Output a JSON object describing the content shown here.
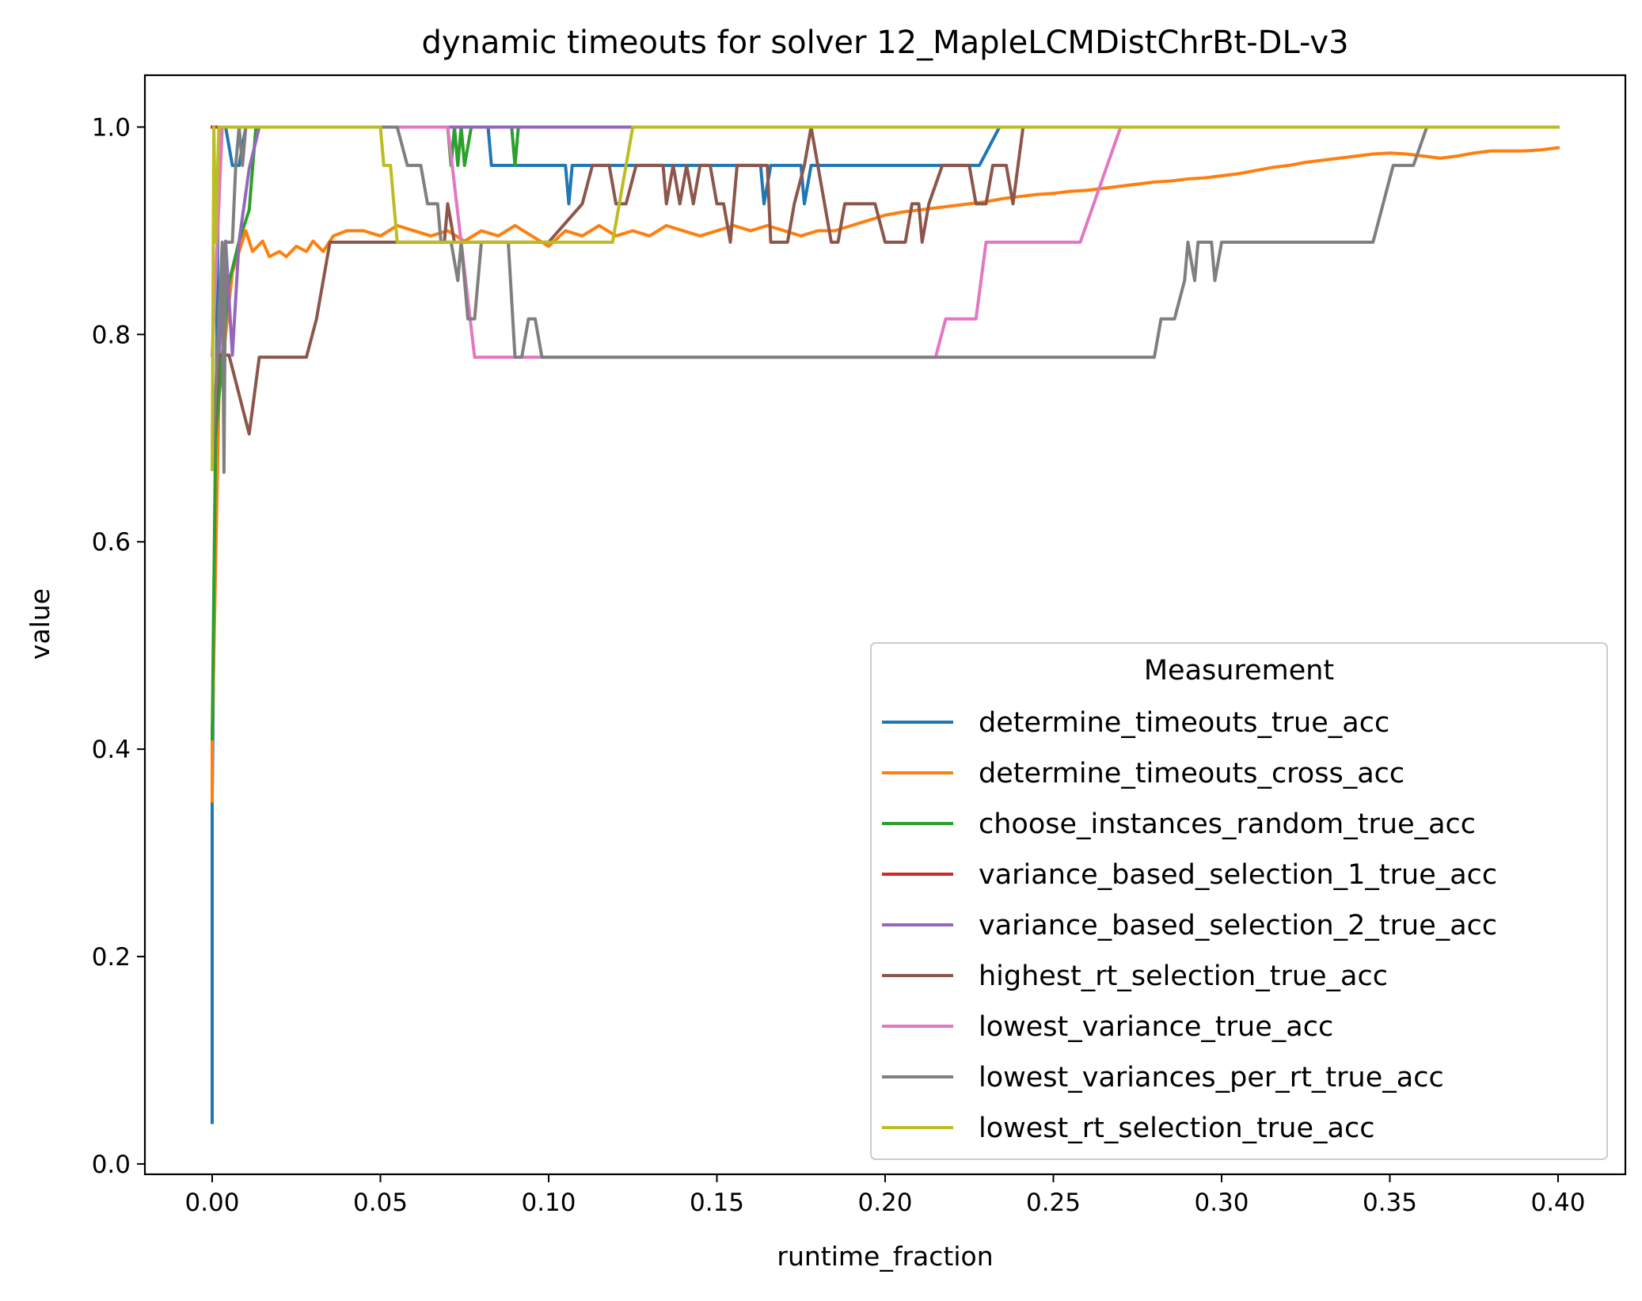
{
  "chart_data": {
    "type": "line",
    "title": "dynamic timeouts for solver 12_MapleLCMDistChrBt-DL-v3",
    "xlabel": "runtime_fraction",
    "ylabel": "value",
    "xlim": [
      -0.02,
      0.42
    ],
    "ylim": [
      -0.01,
      1.05
    ],
    "x_ticks": [
      0.0,
      0.05,
      0.1,
      0.15,
      0.2,
      0.25,
      0.3,
      0.35,
      0.4
    ],
    "x_tick_labels": [
      "0.00",
      "0.05",
      "0.10",
      "0.15",
      "0.20",
      "0.25",
      "0.30",
      "0.35",
      "0.40"
    ],
    "y_ticks": [
      0.0,
      0.2,
      0.4,
      0.6,
      0.8,
      1.0
    ],
    "y_tick_labels": [
      "0.0",
      "0.2",
      "0.4",
      "0.6",
      "0.8",
      "1.0"
    ],
    "grid": false,
    "legend": {
      "title": "Measurement",
      "position": "lower-right"
    },
    "series": [
      {
        "name": "determine_timeouts_true_acc",
        "color": "#1f77b4",
        "points": [
          [
            0.0,
            0.04
          ],
          [
            0.0,
            0.35
          ],
          [
            0.002,
            1.0
          ],
          [
            0.004,
            1.0
          ],
          [
            0.006,
            0.963
          ],
          [
            0.008,
            0.963
          ],
          [
            0.01,
            1.0
          ],
          [
            0.082,
            1.0
          ],
          [
            0.083,
            0.963
          ],
          [
            0.105,
            0.963
          ],
          [
            0.106,
            0.926
          ],
          [
            0.107,
            0.963
          ],
          [
            0.163,
            0.963
          ],
          [
            0.164,
            0.926
          ],
          [
            0.166,
            0.963
          ],
          [
            0.175,
            0.963
          ],
          [
            0.176,
            0.926
          ],
          [
            0.178,
            0.963
          ],
          [
            0.228,
            0.963
          ],
          [
            0.234,
            1.0
          ],
          [
            0.4,
            1.0
          ]
        ]
      },
      {
        "name": "determine_timeouts_cross_acc",
        "color": "#ff7f0e",
        "points": [
          [
            0.0,
            0.35
          ],
          [
            0.0,
            0.41
          ],
          [
            0.002,
            0.74
          ],
          [
            0.004,
            0.8
          ],
          [
            0.006,
            0.86
          ],
          [
            0.008,
            0.88
          ],
          [
            0.01,
            0.9
          ],
          [
            0.012,
            0.88
          ],
          [
            0.015,
            0.89
          ],
          [
            0.017,
            0.875
          ],
          [
            0.02,
            0.88
          ],
          [
            0.022,
            0.875
          ],
          [
            0.025,
            0.885
          ],
          [
            0.028,
            0.88
          ],
          [
            0.03,
            0.89
          ],
          [
            0.033,
            0.88
          ],
          [
            0.036,
            0.895
          ],
          [
            0.04,
            0.9
          ],
          [
            0.045,
            0.9
          ],
          [
            0.05,
            0.895
          ],
          [
            0.055,
            0.905
          ],
          [
            0.06,
            0.9
          ],
          [
            0.065,
            0.895
          ],
          [
            0.07,
            0.9
          ],
          [
            0.075,
            0.89
          ],
          [
            0.08,
            0.9
          ],
          [
            0.085,
            0.895
          ],
          [
            0.09,
            0.905
          ],
          [
            0.095,
            0.895
          ],
          [
            0.1,
            0.885
          ],
          [
            0.105,
            0.9
          ],
          [
            0.11,
            0.895
          ],
          [
            0.115,
            0.905
          ],
          [
            0.12,
            0.895
          ],
          [
            0.125,
            0.9
          ],
          [
            0.13,
            0.895
          ],
          [
            0.135,
            0.905
          ],
          [
            0.14,
            0.9
          ],
          [
            0.145,
            0.895
          ],
          [
            0.15,
            0.9
          ],
          [
            0.155,
            0.905
          ],
          [
            0.16,
            0.9
          ],
          [
            0.165,
            0.905
          ],
          [
            0.17,
            0.9
          ],
          [
            0.175,
            0.895
          ],
          [
            0.18,
            0.9
          ],
          [
            0.185,
            0.9
          ],
          [
            0.19,
            0.905
          ],
          [
            0.195,
            0.91
          ],
          [
            0.2,
            0.915
          ],
          [
            0.205,
            0.918
          ],
          [
            0.21,
            0.92
          ],
          [
            0.215,
            0.922
          ],
          [
            0.22,
            0.924
          ],
          [
            0.225,
            0.926
          ],
          [
            0.23,
            0.928
          ],
          [
            0.235,
            0.931
          ],
          [
            0.24,
            0.933
          ],
          [
            0.245,
            0.935
          ],
          [
            0.25,
            0.936
          ],
          [
            0.255,
            0.938
          ],
          [
            0.26,
            0.939
          ],
          [
            0.265,
            0.941
          ],
          [
            0.27,
            0.943
          ],
          [
            0.275,
            0.945
          ],
          [
            0.28,
            0.947
          ],
          [
            0.285,
            0.948
          ],
          [
            0.29,
            0.95
          ],
          [
            0.295,
            0.951
          ],
          [
            0.3,
            0.953
          ],
          [
            0.305,
            0.955
          ],
          [
            0.31,
            0.958
          ],
          [
            0.315,
            0.961
          ],
          [
            0.32,
            0.963
          ],
          [
            0.325,
            0.966
          ],
          [
            0.33,
            0.968
          ],
          [
            0.335,
            0.97
          ],
          [
            0.34,
            0.972
          ],
          [
            0.345,
            0.974
          ],
          [
            0.35,
            0.975
          ],
          [
            0.355,
            0.974
          ],
          [
            0.36,
            0.972
          ],
          [
            0.365,
            0.97
          ],
          [
            0.37,
            0.972
          ],
          [
            0.375,
            0.975
          ],
          [
            0.38,
            0.977
          ],
          [
            0.385,
            0.977
          ],
          [
            0.39,
            0.977
          ],
          [
            0.395,
            0.978
          ],
          [
            0.4,
            0.98
          ]
        ]
      },
      {
        "name": "choose_instances_random_true_acc",
        "color": "#2ca02c",
        "points": [
          [
            0.0,
            0.41
          ],
          [
            0.001,
            0.7
          ],
          [
            0.003,
            0.78
          ],
          [
            0.005,
            0.85
          ],
          [
            0.008,
            0.89
          ],
          [
            0.011,
            0.92
          ],
          [
            0.013,
            1.0
          ],
          [
            0.07,
            1.0
          ],
          [
            0.071,
            0.963
          ],
          [
            0.072,
            1.0
          ],
          [
            0.073,
            0.963
          ],
          [
            0.074,
            1.0
          ],
          [
            0.075,
            0.963
          ],
          [
            0.077,
            1.0
          ],
          [
            0.089,
            1.0
          ],
          [
            0.09,
            0.963
          ],
          [
            0.091,
            1.0
          ],
          [
            0.4,
            1.0
          ]
        ]
      },
      {
        "name": "variance_based_selection_1_true_acc",
        "color": "#d62728",
        "points": [
          [
            0.0,
            1.0
          ],
          [
            0.4,
            1.0
          ]
        ]
      },
      {
        "name": "variance_based_selection_2_true_acc",
        "color": "#9467bd",
        "points": [
          [
            0.0,
            0.67
          ],
          [
            0.002,
            0.78
          ],
          [
            0.004,
            0.89
          ],
          [
            0.006,
            0.78
          ],
          [
            0.008,
            0.89
          ],
          [
            0.011,
            0.96
          ],
          [
            0.014,
            1.0
          ],
          [
            0.4,
            1.0
          ]
        ]
      },
      {
        "name": "highest_rt_selection_true_acc",
        "color": "#8c564b",
        "points": [
          [
            0.0,
            0.67
          ],
          [
            0.002,
            0.78
          ],
          [
            0.005,
            0.78
          ],
          [
            0.011,
            0.704
          ],
          [
            0.014,
            0.778
          ],
          [
            0.028,
            0.778
          ],
          [
            0.031,
            0.815
          ],
          [
            0.035,
            0.889
          ],
          [
            0.069,
            0.889
          ],
          [
            0.07,
            0.926
          ],
          [
            0.072,
            0.889
          ],
          [
            0.1,
            0.889
          ],
          [
            0.11,
            0.926
          ],
          [
            0.113,
            0.963
          ],
          [
            0.118,
            0.963
          ],
          [
            0.12,
            0.926
          ],
          [
            0.123,
            0.926
          ],
          [
            0.126,
            0.963
          ],
          [
            0.134,
            0.963
          ],
          [
            0.135,
            0.926
          ],
          [
            0.137,
            0.963
          ],
          [
            0.139,
            0.926
          ],
          [
            0.141,
            0.963
          ],
          [
            0.143,
            0.926
          ],
          [
            0.145,
            0.963
          ],
          [
            0.148,
            0.963
          ],
          [
            0.15,
            0.926
          ],
          [
            0.152,
            0.926
          ],
          [
            0.154,
            0.889
          ],
          [
            0.156,
            0.963
          ],
          [
            0.165,
            0.963
          ],
          [
            0.166,
            0.889
          ],
          [
            0.171,
            0.889
          ],
          [
            0.173,
            0.926
          ],
          [
            0.176,
            0.963
          ],
          [
            0.178,
            1.0
          ],
          [
            0.18,
            0.963
          ],
          [
            0.182,
            0.926
          ],
          [
            0.184,
            0.889
          ],
          [
            0.186,
            0.889
          ],
          [
            0.188,
            0.926
          ],
          [
            0.197,
            0.926
          ],
          [
            0.2,
            0.889
          ],
          [
            0.206,
            0.889
          ],
          [
            0.208,
            0.926
          ],
          [
            0.21,
            0.926
          ],
          [
            0.211,
            0.889
          ],
          [
            0.213,
            0.926
          ],
          [
            0.217,
            0.963
          ],
          [
            0.225,
            0.963
          ],
          [
            0.227,
            0.926
          ],
          [
            0.23,
            0.926
          ],
          [
            0.232,
            0.963
          ],
          [
            0.236,
            0.963
          ],
          [
            0.238,
            0.926
          ],
          [
            0.241,
            1.0
          ],
          [
            0.4,
            1.0
          ]
        ]
      },
      {
        "name": "lowest_variance_true_acc",
        "color": "#e377c2",
        "points": [
          [
            0.0,
            0.78
          ],
          [
            0.003,
            1.0
          ],
          [
            0.066,
            1.0
          ],
          [
            0.07,
            1.0
          ],
          [
            0.078,
            0.778
          ],
          [
            0.095,
            0.778
          ],
          [
            0.215,
            0.778
          ],
          [
            0.218,
            0.815
          ],
          [
            0.227,
            0.815
          ],
          [
            0.23,
            0.889
          ],
          [
            0.258,
            0.889
          ],
          [
            0.27,
            1.0
          ],
          [
            0.4,
            1.0
          ]
        ]
      },
      {
        "name": "lowest_variances_per_rt_true_acc",
        "color": "#7f7f7f",
        "points": [
          [
            0.0,
            0.67
          ],
          [
            0.003,
            0.889
          ],
          [
            0.0035,
            0.667
          ],
          [
            0.004,
            0.889
          ],
          [
            0.006,
            0.889
          ],
          [
            0.007,
            0.963
          ],
          [
            0.008,
            1.0
          ],
          [
            0.009,
            0.963
          ],
          [
            0.01,
            1.0
          ],
          [
            0.05,
            1.0
          ],
          [
            0.055,
            1.0
          ],
          [
            0.058,
            0.963
          ],
          [
            0.062,
            0.963
          ],
          [
            0.064,
            0.926
          ],
          [
            0.067,
            0.926
          ],
          [
            0.068,
            0.889
          ],
          [
            0.071,
            0.889
          ],
          [
            0.073,
            0.852
          ],
          [
            0.074,
            0.889
          ],
          [
            0.076,
            0.815
          ],
          [
            0.078,
            0.815
          ],
          [
            0.08,
            0.889
          ],
          [
            0.088,
            0.889
          ],
          [
            0.09,
            0.778
          ],
          [
            0.092,
            0.778
          ],
          [
            0.094,
            0.815
          ],
          [
            0.096,
            0.815
          ],
          [
            0.098,
            0.778
          ],
          [
            0.28,
            0.778
          ],
          [
            0.282,
            0.815
          ],
          [
            0.286,
            0.815
          ],
          [
            0.289,
            0.852
          ],
          [
            0.29,
            0.889
          ],
          [
            0.292,
            0.852
          ],
          [
            0.293,
            0.889
          ],
          [
            0.297,
            0.889
          ],
          [
            0.298,
            0.852
          ],
          [
            0.3,
            0.889
          ],
          [
            0.345,
            0.889
          ],
          [
            0.351,
            0.963
          ],
          [
            0.357,
            0.963
          ],
          [
            0.361,
            1.0
          ],
          [
            0.4,
            1.0
          ]
        ]
      },
      {
        "name": "lowest_rt_selection_true_acc",
        "color": "#bcbd22",
        "points": [
          [
            0.0,
            0.67
          ],
          [
            0.0005,
            1.0
          ],
          [
            0.001,
            0.889
          ],
          [
            0.002,
            1.0
          ],
          [
            0.05,
            1.0
          ],
          [
            0.051,
            0.963
          ],
          [
            0.053,
            0.963
          ],
          [
            0.055,
            0.889
          ],
          [
            0.119,
            0.889
          ],
          [
            0.125,
            1.0
          ],
          [
            0.4,
            1.0
          ]
        ]
      }
    ]
  }
}
